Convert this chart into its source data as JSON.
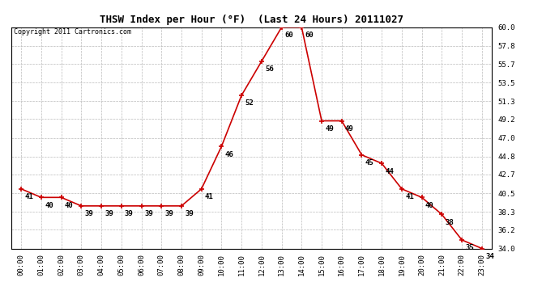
{
  "title": "THSW Index per Hour (°F)  (Last 24 Hours) 20111027",
  "copyright_text": "Copyright 2011 Cartronics.com",
  "hours": [
    0,
    1,
    2,
    3,
    4,
    5,
    6,
    7,
    8,
    9,
    10,
    11,
    12,
    13,
    14,
    15,
    16,
    17,
    18,
    19,
    20,
    21,
    22,
    23
  ],
  "x_labels": [
    "00:00",
    "01:00",
    "02:00",
    "03:00",
    "04:00",
    "05:00",
    "06:00",
    "07:00",
    "08:00",
    "09:00",
    "10:00",
    "11:00",
    "12:00",
    "13:00",
    "14:00",
    "15:00",
    "16:00",
    "17:00",
    "18:00",
    "19:00",
    "20:00",
    "21:00",
    "22:00",
    "23:00"
  ],
  "values": [
    41,
    40,
    40,
    39,
    39,
    39,
    39,
    39,
    39,
    41,
    46,
    52,
    56,
    60,
    60,
    49,
    49,
    45,
    44,
    41,
    40,
    38,
    35,
    34
  ],
  "ylim": [
    34.0,
    60.0
  ],
  "ytick_labels": [
    "34.0",
    "36.2",
    "38.3",
    "40.5",
    "42.7",
    "44.8",
    "47.0",
    "49.2",
    "51.3",
    "53.5",
    "55.7",
    "57.8",
    "60.0"
  ],
  "ytick_values": [
    34.0,
    36.2,
    38.3,
    40.5,
    42.7,
    44.8,
    47.0,
    49.2,
    51.3,
    53.5,
    55.7,
    57.8,
    60.0
  ],
  "line_color": "#cc0000",
  "bg_color": "#ffffff",
  "grid_color": "#bbbbbb",
  "title_fontsize": 9,
  "label_fontsize": 6.5,
  "annotation_fontsize": 6.5,
  "copyright_fontsize": 6
}
